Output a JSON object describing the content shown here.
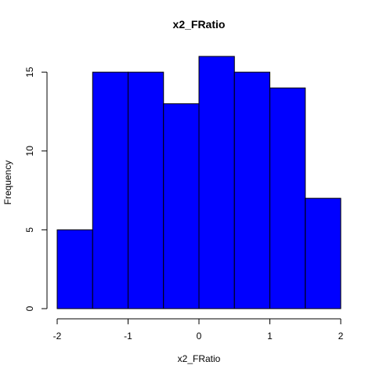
{
  "chart_data": {
    "type": "bar",
    "title": "x2_FRatio",
    "xlabel": "x2_FRatio",
    "ylabel": "Frequency",
    "bins": [
      {
        "start": -2.0,
        "end": -1.5,
        "count": 5
      },
      {
        "start": -1.5,
        "end": -1.0,
        "count": 15
      },
      {
        "start": -1.0,
        "end": -0.5,
        "count": 15
      },
      {
        "start": -0.5,
        "end": 0.0,
        "count": 13
      },
      {
        "start": 0.0,
        "end": 0.5,
        "count": 16
      },
      {
        "start": 0.5,
        "end": 1.0,
        "count": 15
      },
      {
        "start": 1.0,
        "end": 1.5,
        "count": 14
      },
      {
        "start": 1.5,
        "end": 2.0,
        "count": 7
      }
    ],
    "xlim": [
      -2,
      2
    ],
    "ylim": [
      0,
      16
    ],
    "xticks": [
      {
        "value": -2,
        "label": "-2"
      },
      {
        "value": -1,
        "label": "-1"
      },
      {
        "value": 0,
        "label": "0"
      },
      {
        "value": 1,
        "label": "1"
      },
      {
        "value": 2,
        "label": "2"
      }
    ],
    "yticks": [
      {
        "value": 0,
        "label": "0"
      },
      {
        "value": 5,
        "label": "5"
      },
      {
        "value": 10,
        "label": "10"
      },
      {
        "value": 15,
        "label": "15"
      }
    ],
    "bar_color": "#0000ff",
    "grid": false,
    "legend": "none"
  }
}
